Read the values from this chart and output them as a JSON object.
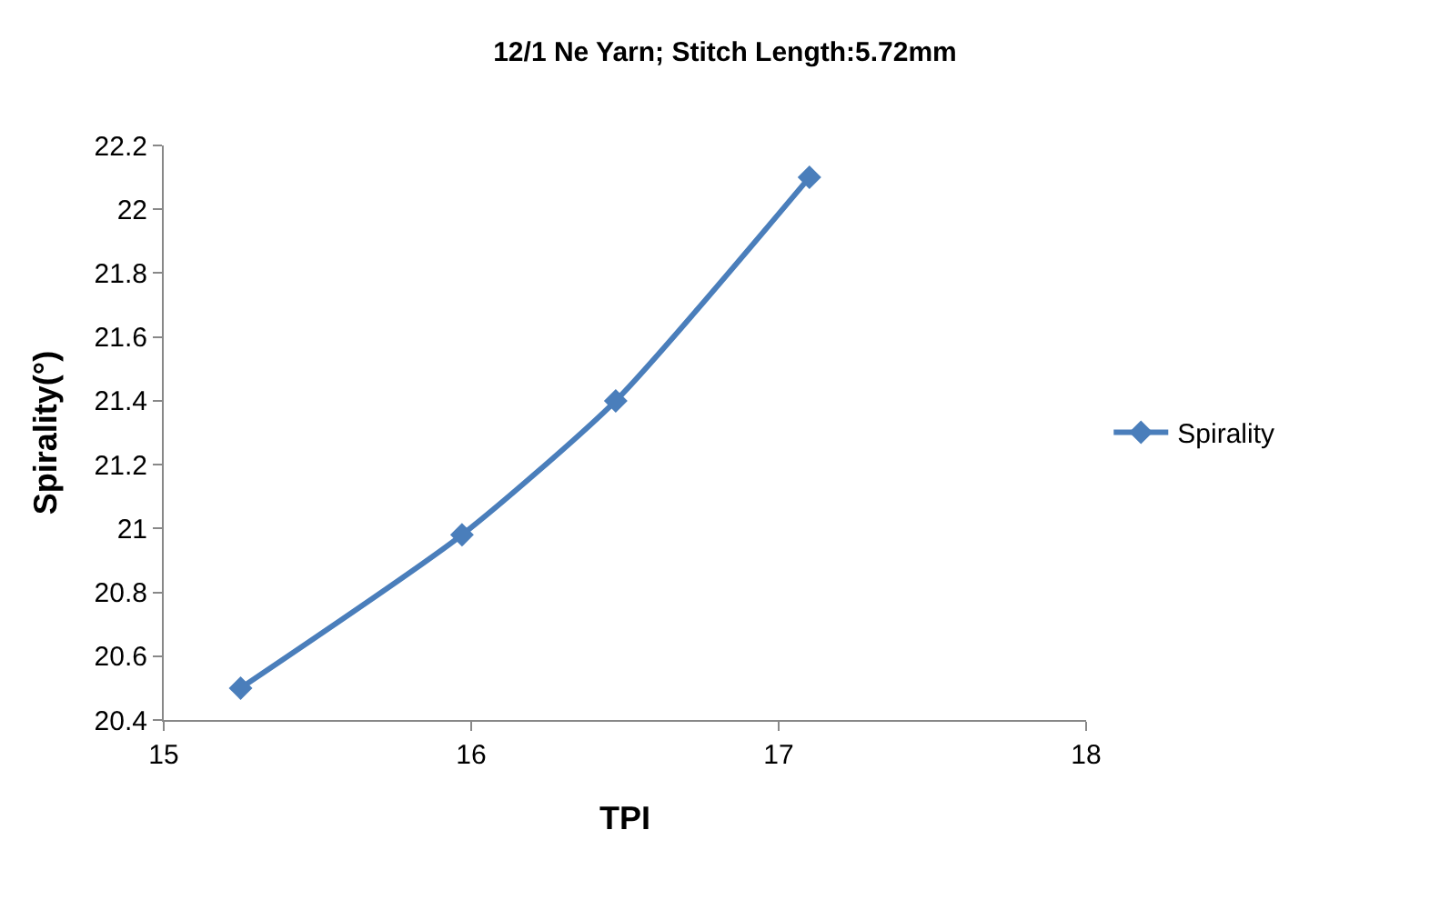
{
  "chart_data": {
    "type": "line",
    "title": "12/1 Ne Yarn; Stitch Length:5.72mm",
    "xlabel": "TPI",
    "ylabel": "Spirality(°)",
    "x": [
      15.25,
      15.97,
      16.47,
      17.1
    ],
    "series": [
      {
        "name": "Spirality",
        "color": "#4a7ebb",
        "values": [
          20.5,
          20.98,
          21.4,
          22.1
        ]
      }
    ],
    "xlim": [
      15,
      18
    ],
    "xticks": [
      15,
      16,
      17,
      18
    ],
    "ylim": [
      20.4,
      22.2
    ],
    "yticks": [
      20.4,
      20.6,
      20.8,
      21,
      21.2,
      21.4,
      21.6,
      21.8,
      22,
      22.2
    ],
    "grid": false,
    "legend": "right",
    "marker": "diamond",
    "line_style": "solid"
  }
}
